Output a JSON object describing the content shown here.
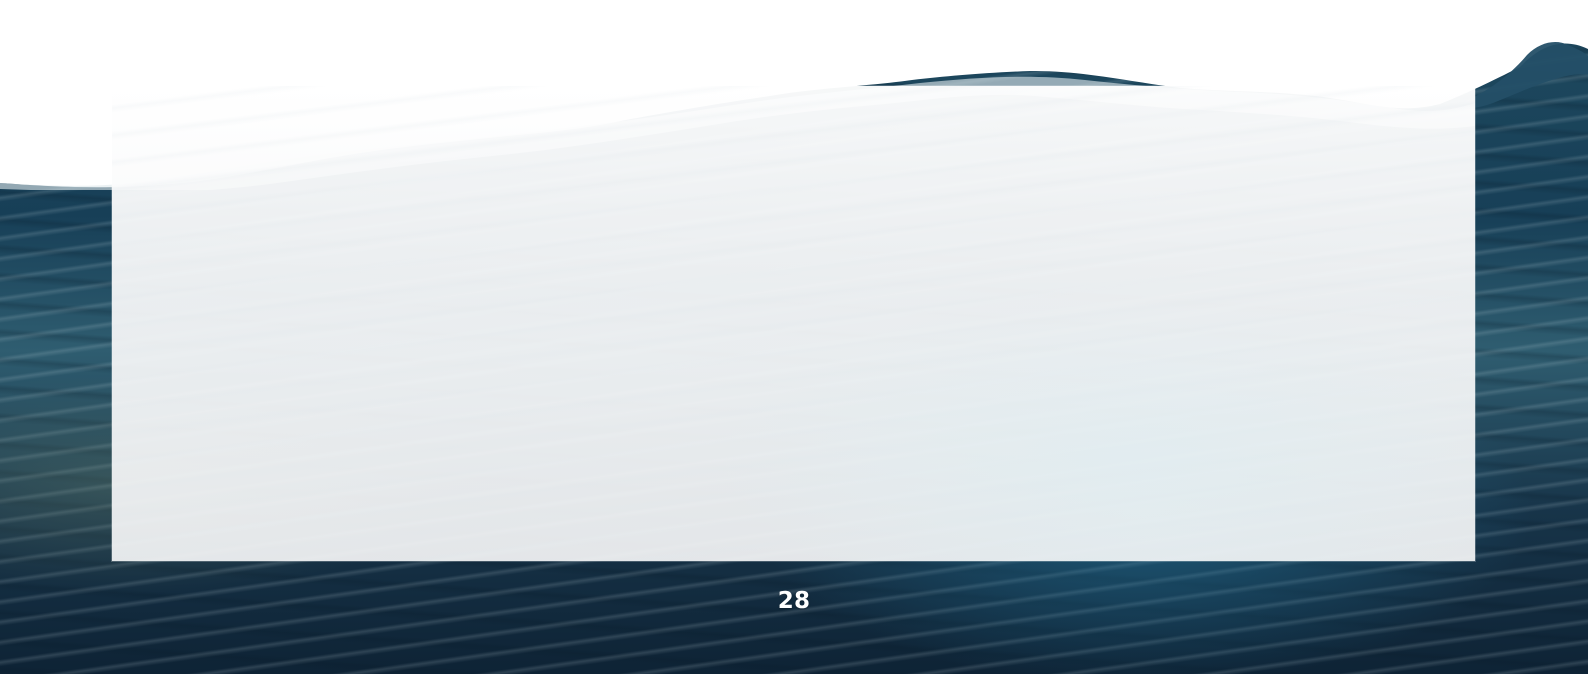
{
  "page": {
    "number": "28"
  }
}
